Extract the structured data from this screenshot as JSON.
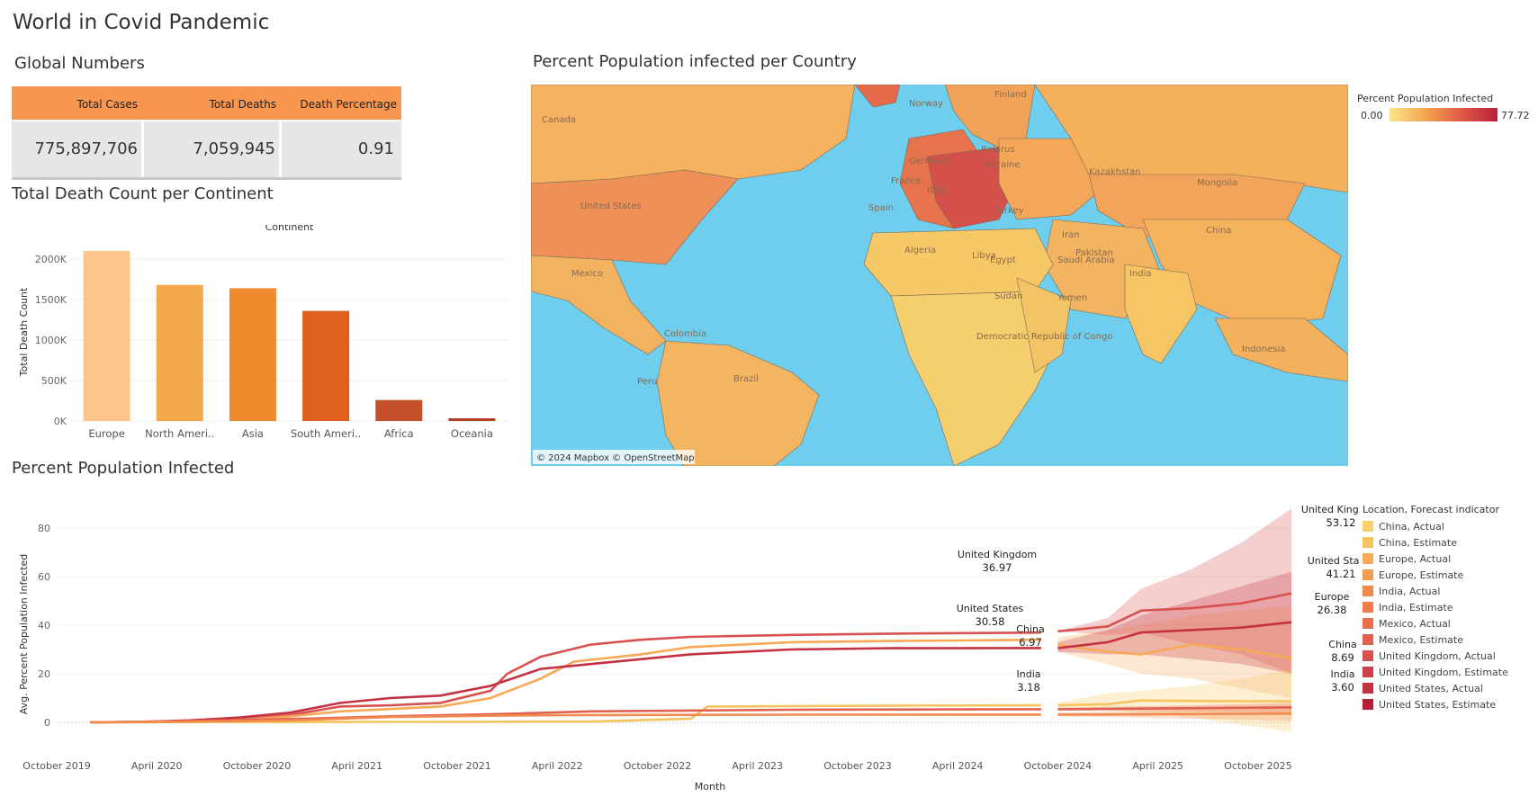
{
  "dashboard": {
    "title": "World in Covid Pandemic"
  },
  "global_numbers": {
    "title": "Global Numbers",
    "columns": [
      "Total Cases",
      "Total Deaths",
      "Death Percentage"
    ],
    "values": [
      "775,897,706",
      "7,059,945",
      "0.91"
    ],
    "header_color": "#f7974f"
  },
  "map": {
    "title": "Percent Population infected per Country",
    "attribution": "© 2024 Mapbox © OpenStreetMap",
    "legend_title": "Percent Population Infected",
    "legend_min": "0.00",
    "legend_max": "77.72",
    "ocean_color": "#6fcdee",
    "country_labels": [
      "Canada",
      "United States",
      "Mexico",
      "Colombia",
      "Peru",
      "Brazil",
      "Norway",
      "Finland",
      "Germany",
      "France",
      "Spain",
      "Italy",
      "Belarus",
      "Ukraine",
      "Turkey",
      "Kazakhstan",
      "Mongolia",
      "China",
      "Iran",
      "Pakistan",
      "India",
      "Saudi Arabia",
      "Yemen",
      "Algeria",
      "Libya",
      "Egypt",
      "Sudan",
      "Democratic Republic of Congo",
      "Indonesia"
    ]
  },
  "chart_data": [
    {
      "type": "bar",
      "title": "Total Death Count per Continent",
      "header": "Continent",
      "ylabel": "Total Death Count",
      "categories": [
        "Europe",
        "North Ameri..",
        "Asia",
        "South Ameri..",
        "Africa",
        "Oceania"
      ],
      "values": [
        2100000,
        1680000,
        1640000,
        1360000,
        259000,
        33000
      ],
      "colors": [
        "#fdc589",
        "#f5a84a",
        "#f08a2e",
        "#e06020",
        "#c4502a",
        "#b13d23"
      ],
      "yticks": [
        0,
        500000,
        1000000,
        1500000,
        2000000
      ],
      "ytick_labels": [
        "0K",
        "500K",
        "1000K",
        "1500K",
        "2000K"
      ],
      "ylim": [
        0,
        2200000
      ]
    },
    {
      "type": "line",
      "title": "Percent Population Infected",
      "xlabel": "Month",
      "ylabel": "Avg. Percent Population Infected",
      "ylim": [
        -10,
        90
      ],
      "yticks": [
        0,
        20,
        40,
        60,
        80
      ],
      "xlim": [
        "2019-10",
        "2025-12"
      ],
      "xticks": [
        "October 2019",
        "April 2020",
        "October 2020",
        "April 2021",
        "October 2021",
        "April 2022",
        "October 2022",
        "April 2023",
        "October 2023",
        "April 2024",
        "October 2024",
        "April 2025",
        "October 2025"
      ],
      "legend_title": "Location, Forecast indicator",
      "legend_position": "right",
      "legend": [
        {
          "label": "China, Actual",
          "color": "#f7d16b"
        },
        {
          "label": "China, Estimate",
          "color": "#f6c45d"
        },
        {
          "label": "Europe, Actual",
          "color": "#f7a955"
        },
        {
          "label": "Europe, Estimate",
          "color": "#f49b4f"
        },
        {
          "label": "India, Actual",
          "color": "#f28a4d"
        },
        {
          "label": "India, Estimate",
          "color": "#ee7c4c"
        },
        {
          "label": "Mexico, Actual",
          "color": "#e96e4c"
        },
        {
          "label": "Mexico, Estimate",
          "color": "#e06050"
        },
        {
          "label": "United Kingdom, Actual",
          "color": "#d8514e"
        },
        {
          "label": "United Kingdom, Estimate",
          "color": "#cf4049"
        },
        {
          "label": "United States, Actual",
          "color": "#c43141"
        },
        {
          "label": "United States, Estimate",
          "color": "#b81e3c"
        }
      ],
      "series": [
        {
          "name": "United Kingdom",
          "color": "#d8514e",
          "actual": [
            [
              "2019-12",
              0
            ],
            [
              "2020-03",
              0.2
            ],
            [
              "2020-06",
              0.5
            ],
            [
              "2020-09",
              1
            ],
            [
              "2020-12",
              3
            ],
            [
              "2021-03",
              6.5
            ],
            [
              "2021-06",
              7
            ],
            [
              "2021-09",
              8
            ],
            [
              "2021-12",
              13
            ],
            [
              "2022-01",
              20
            ],
            [
              "2022-03",
              27
            ],
            [
              "2022-06",
              32
            ],
            [
              "2022-09",
              34
            ],
            [
              "2022-12",
              35.2
            ],
            [
              "2023-06",
              36
            ],
            [
              "2023-12",
              36.5
            ],
            [
              "2024-09",
              36.97
            ]
          ],
          "estimate": [
            [
              "2024-10",
              37.5
            ],
            [
              "2025-01",
              39.5
            ],
            [
              "2025-03",
              46
            ],
            [
              "2025-06",
              47
            ],
            [
              "2025-09",
              49
            ],
            [
              "2025-12",
              53.12
            ]
          ],
          "band": [
            [
              37.5,
              37.5
            ],
            [
              43,
              36
            ],
            [
              55,
              37
            ],
            [
              63,
              32
            ],
            [
              74,
              28
            ],
            [
              88,
              20
            ]
          ],
          "label_actual": "United Kingdom",
          "value_actual": "36.97",
          "label_estimate": "United Kingdom",
          "value_estimate": "53.12"
        },
        {
          "name": "Europe",
          "color": "#f7a955",
          "actual": [
            [
              "2019-12",
              0
            ],
            [
              "2020-03",
              0.1
            ],
            [
              "2020-06",
              0.3
            ],
            [
              "2020-09",
              0.8
            ],
            [
              "2020-12",
              2.5
            ],
            [
              "2021-03",
              4.5
            ],
            [
              "2021-06",
              5.5
            ],
            [
              "2021-09",
              6.5
            ],
            [
              "2021-12",
              10
            ],
            [
              "2022-03",
              18
            ],
            [
              "2022-05",
              25
            ],
            [
              "2022-09",
              28
            ],
            [
              "2022-12",
              31
            ],
            [
              "2023-06",
              33
            ],
            [
              "2023-12",
              33.5
            ],
            [
              "2024-09",
              34
            ]
          ],
          "estimate": [
            [
              "2024-10",
              32
            ],
            [
              "2025-01",
              29
            ],
            [
              "2025-03",
              28
            ],
            [
              "2025-06",
              32
            ],
            [
              "2025-09",
              30
            ],
            [
              "2025-12",
              26.38
            ]
          ],
          "band": [
            [
              35,
              29
            ],
            [
              38,
              24
            ],
            [
              40,
              20
            ],
            [
              44,
              18
            ],
            [
              46,
              14
            ],
            [
              48,
              10
            ]
          ],
          "label_estimate": "Europe",
          "value_estimate": "26.38"
        },
        {
          "name": "United States",
          "color": "#c43141",
          "actual": [
            [
              "2019-12",
              0
            ],
            [
              "2020-03",
              0.2
            ],
            [
              "2020-06",
              0.8
            ],
            [
              "2020-09",
              2
            ],
            [
              "2020-12",
              4
            ],
            [
              "2021-03",
              8
            ],
            [
              "2021-06",
              10
            ],
            [
              "2021-09",
              11
            ],
            [
              "2021-12",
              15
            ],
            [
              "2022-03",
              22
            ],
            [
              "2022-06",
              24
            ],
            [
              "2022-09",
              26
            ],
            [
              "2022-12",
              28
            ],
            [
              "2023-06",
              30
            ],
            [
              "2023-12",
              30.5
            ],
            [
              "2024-09",
              30.58
            ]
          ],
          "estimate": [
            [
              "2024-10",
              30.5
            ],
            [
              "2025-01",
              33
            ],
            [
              "2025-03",
              37
            ],
            [
              "2025-06",
              38
            ],
            [
              "2025-09",
              39
            ],
            [
              "2025-12",
              41.21
            ]
          ],
          "band": [
            [
              33,
              29
            ],
            [
              38,
              28
            ],
            [
              44,
              28
            ],
            [
              50,
              26
            ],
            [
              56,
              24
            ],
            [
              62,
              20
            ]
          ],
          "label_actual": "United States",
          "value_actual": "30.58",
          "label_estimate": "United States",
          "value_estimate": "41.21"
        },
        {
          "name": "China",
          "color": "#f6c45d",
          "actual": [
            [
              "2019-12",
              0
            ],
            [
              "2020-06",
              0.1
            ],
            [
              "2021-06",
              0.2
            ],
            [
              "2022-06",
              0.3
            ],
            [
              "2022-12",
              1.5
            ],
            [
              "2023-01",
              6.5
            ],
            [
              "2023-12",
              6.9
            ],
            [
              "2024-09",
              6.97
            ]
          ],
          "estimate": [
            [
              "2024-10",
              7
            ],
            [
              "2025-01",
              7.5
            ],
            [
              "2025-03",
              9
            ],
            [
              "2025-06",
              8.8
            ],
            [
              "2025-09",
              8.7
            ],
            [
              "2025-12",
              8.69
            ]
          ],
          "band": [
            [
              8,
              6
            ],
            [
              12,
              5
            ],
            [
              13,
              4
            ],
            [
              15,
              2
            ],
            [
              18,
              -1
            ],
            [
              22,
              -4
            ]
          ],
          "label_actual": "China",
          "value_actual": "6.97",
          "label_estimate": "China",
          "value_estimate": "8.69"
        },
        {
          "name": "Mexico",
          "color": "#e06050",
          "actual": [
            [
              "2019-12",
              0
            ],
            [
              "2020-06",
              0.5
            ],
            [
              "2021-01",
              1.5
            ],
            [
              "2021-06",
              2.5
            ],
            [
              "2022-01",
              3.5
            ],
            [
              "2022-06",
              4.5
            ],
            [
              "2023-06",
              5.2
            ],
            [
              "2024-09",
              5.4
            ]
          ],
          "estimate": [
            [
              "2024-10",
              5.4
            ],
            [
              "2025-06",
              5.8
            ],
            [
              "2025-12",
              6.2
            ]
          ],
          "band": [
            [
              6,
              4.8
            ],
            [
              7,
              4.5
            ],
            [
              8,
              4
            ]
          ]
        },
        {
          "name": "India",
          "color": "#f28a4d",
          "actual": [
            [
              "2019-12",
              0
            ],
            [
              "2020-06",
              0.3
            ],
            [
              "2020-12",
              0.8
            ],
            [
              "2021-06",
              2.2
            ],
            [
              "2022-01",
              2.8
            ],
            [
              "2022-06",
              3
            ],
            [
              "2023-06",
              3.15
            ],
            [
              "2024-09",
              3.18
            ]
          ],
          "estimate": [
            [
              "2024-10",
              3.2
            ],
            [
              "2025-06",
              3.4
            ],
            [
              "2025-12",
              3.6
            ]
          ],
          "band": [
            [
              4,
              2.5
            ],
            [
              5,
              1.5
            ],
            [
              6,
              0.5
            ]
          ],
          "label_actual": "India",
          "value_actual": "3.18",
          "label_estimate": "India",
          "value_estimate": "3.60"
        }
      ]
    }
  ]
}
